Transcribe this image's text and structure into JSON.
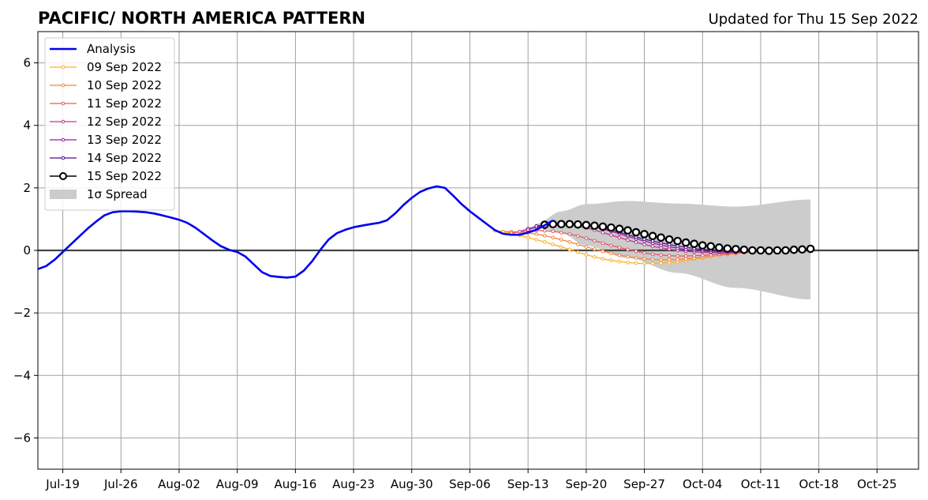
{
  "chart_data": {
    "type": "line",
    "title": "PACIFIC/ NORTH AMERICA PATTERN",
    "subtitle": "Updated for Thu 15 Sep 2022",
    "xlabel": "",
    "ylabel": "",
    "xlim": [
      "2022-07-16",
      "2022-10-30"
    ],
    "ylim": [
      -7,
      7
    ],
    "yticks": [
      -6,
      -4,
      -2,
      0,
      2,
      4,
      6
    ],
    "ytick_labels": [
      "−6",
      "−4",
      "−2",
      "0",
      "2",
      "4",
      "6"
    ],
    "xticks": [
      "2022-07-19",
      "2022-07-26",
      "2022-08-02",
      "2022-08-09",
      "2022-08-16",
      "2022-08-23",
      "2022-08-30",
      "2022-09-06",
      "2022-09-13",
      "2022-09-20",
      "2022-09-27",
      "2022-10-04",
      "2022-10-11",
      "2022-10-18",
      "2022-10-25"
    ],
    "xtick_labels": [
      "Jul-19",
      "Jul-26",
      "Aug-02",
      "Aug-09",
      "Aug-16",
      "Aug-23",
      "Aug-30",
      "Sep-06",
      "Sep-13",
      "Sep-20",
      "Sep-27",
      "Oct-04",
      "Oct-11",
      "Oct-18",
      "Oct-25"
    ],
    "grid": true,
    "zero_line": true,
    "legend_position": "top-left",
    "analysis": {
      "name": "Analysis",
      "color": "#0000ee",
      "start": "2022-07-16",
      "values": [
        -0.6,
        -0.5,
        -0.3,
        -0.05,
        0.2,
        0.45,
        0.7,
        0.92,
        1.12,
        1.22,
        1.25,
        1.25,
        1.24,
        1.22,
        1.18,
        1.12,
        1.05,
        0.98,
        0.88,
        0.72,
        0.52,
        0.32,
        0.14,
        0.02,
        -0.05,
        -0.2,
        -0.45,
        -0.7,
        -0.82,
        -0.85,
        -0.87,
        -0.84,
        -0.65,
        -0.35,
        0.02,
        0.35,
        0.55,
        0.66,
        0.74,
        0.79,
        0.84,
        0.88,
        0.96,
        1.18,
        1.45,
        1.68,
        1.87,
        1.98,
        2.05,
        2.0,
        1.75,
        1.48,
        1.25,
        1.05,
        0.85,
        0.65,
        0.53,
        0.5,
        0.5,
        0.57,
        0.66,
        0.8,
        0.96
      ]
    },
    "forecasts": [
      {
        "name": "09 Sep 2022",
        "color": "#fcb02a",
        "start": "2022-09-09",
        "values": [
          0.63,
          0.6,
          0.55,
          0.48,
          0.41,
          0.34,
          0.27,
          0.19,
          0.11,
          0.03,
          -0.06,
          -0.14,
          -0.21,
          -0.27,
          -0.32,
          -0.36,
          -0.39,
          -0.41,
          -0.42,
          -0.42,
          -0.41,
          -0.39,
          -0.36,
          -0.32,
          -0.28,
          -0.24,
          -0.2,
          -0.16,
          -0.12,
          -0.09
        ]
      },
      {
        "name": "10 Sep 2022",
        "color": "#f4853f",
        "start": "2022-09-10",
        "values": [
          0.6,
          0.6,
          0.59,
          0.56,
          0.52,
          0.47,
          0.41,
          0.34,
          0.27,
          0.19,
          0.11,
          0.04,
          -0.03,
          -0.09,
          -0.15,
          -0.2,
          -0.24,
          -0.27,
          -0.29,
          -0.3,
          -0.3,
          -0.29,
          -0.27,
          -0.25,
          -0.22,
          -0.19,
          -0.16,
          -0.13,
          -0.1,
          -0.08
        ]
      },
      {
        "name": "11 Sep 2022",
        "color": "#dd5c66",
        "start": "2022-09-11",
        "values": [
          0.55,
          0.6,
          0.63,
          0.64,
          0.63,
          0.61,
          0.57,
          0.52,
          0.46,
          0.39,
          0.31,
          0.23,
          0.16,
          0.09,
          0.03,
          -0.03,
          -0.08,
          -0.12,
          -0.15,
          -0.17,
          -0.18,
          -0.18,
          -0.17,
          -0.16,
          -0.14,
          -0.12,
          -0.1,
          -0.08,
          -0.06,
          -0.05
        ]
      },
      {
        "name": "12 Sep 2022",
        "color": "#bb3c86",
        "start": "2022-09-12",
        "values": [
          0.6,
          0.7,
          0.77,
          0.82,
          0.84,
          0.84,
          0.82,
          0.78,
          0.72,
          0.65,
          0.57,
          0.49,
          0.41,
          0.33,
          0.26,
          0.19,
          0.13,
          0.08,
          0.04,
          0.0,
          -0.03,
          -0.05,
          -0.06,
          -0.07,
          -0.07,
          -0.07,
          -0.06,
          -0.05,
          -0.04,
          -0.03
        ]
      },
      {
        "name": "13 Sep 2022",
        "color": "#8e1fa2",
        "start": "2022-09-13",
        "values": [
          0.66,
          0.74,
          0.8,
          0.84,
          0.86,
          0.86,
          0.84,
          0.8,
          0.75,
          0.68,
          0.61,
          0.53,
          0.45,
          0.37,
          0.3,
          0.23,
          0.17,
          0.12,
          0.07,
          0.03,
          0.0,
          -0.02,
          -0.04,
          -0.05,
          -0.05,
          -0.05,
          -0.05,
          -0.04,
          -0.03,
          -0.02
        ]
      },
      {
        "name": "14 Sep 2022",
        "color": "#4a0c8c",
        "start": "2022-09-14",
        "values": [
          0.78,
          0.82,
          0.85,
          0.86,
          0.86,
          0.84,
          0.81,
          0.77,
          0.72,
          0.65,
          0.58,
          0.5,
          0.43,
          0.36,
          0.3,
          0.24,
          0.19,
          0.14,
          0.1,
          0.06,
          0.03,
          0.01,
          -0.01,
          -0.02,
          -0.02,
          -0.02,
          -0.02,
          -0.01,
          0.0,
          0.0
        ]
      },
      {
        "name": "15 Sep 2022",
        "color": "#000000",
        "start": "2022-09-15",
        "values": [
          0.82,
          0.84,
          0.84,
          0.84,
          0.83,
          0.81,
          0.79,
          0.76,
          0.73,
          0.69,
          0.64,
          0.58,
          0.52,
          0.46,
          0.41,
          0.35,
          0.3,
          0.25,
          0.21,
          0.16,
          0.13,
          0.09,
          0.06,
          0.04,
          0.02,
          0.0,
          0.0,
          -0.01,
          0.0,
          0.0,
          0.02,
          0.03,
          0.05
        ]
      }
    ],
    "spread": {
      "name": "1σ Spread",
      "color": "#cccccc",
      "start": "2022-09-14",
      "end": "2022-10-17",
      "upper_points": [
        [
          "2022-09-14",
          0.85
        ],
        [
          "2022-09-17",
          1.25
        ],
        [
          "2022-09-20",
          1.48
        ],
        [
          "2022-09-25",
          1.58
        ],
        [
          "2022-10-01",
          1.5
        ],
        [
          "2022-10-08",
          1.4
        ],
        [
          "2022-10-17",
          1.63
        ]
      ],
      "lower_points": [
        [
          "2022-09-14",
          0.75
        ],
        [
          "2022-09-17",
          0.55
        ],
        [
          "2022-09-20",
          0.15
        ],
        [
          "2022-09-25",
          -0.25
        ],
        [
          "2022-10-01",
          -0.72
        ],
        [
          "2022-10-08",
          -1.2
        ],
        [
          "2022-10-17",
          -1.57
        ]
      ]
    }
  }
}
